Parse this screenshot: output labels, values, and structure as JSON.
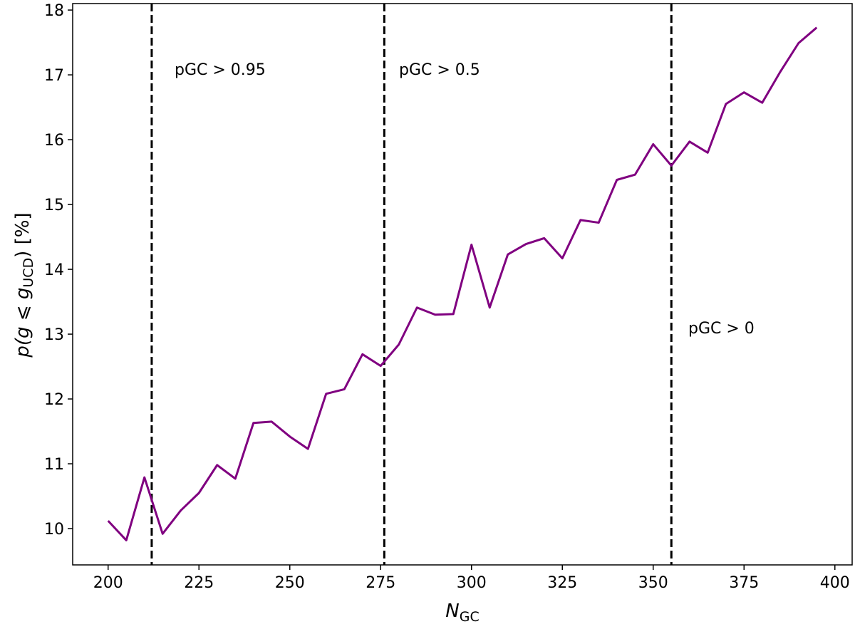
{
  "chart_data": {
    "type": "line",
    "xlabel": [
      "N",
      "GC"
    ],
    "ylabel": [
      "p(g ⩽ g",
      "UCD",
      ") [%]"
    ],
    "x": [
      200,
      205,
      210,
      215,
      220,
      225,
      230,
      235,
      240,
      245,
      250,
      255,
      260,
      265,
      270,
      275,
      280,
      285,
      290,
      295,
      300,
      305,
      310,
      315,
      320,
      325,
      330,
      335,
      340,
      345,
      350,
      355,
      360,
      365,
      370,
      375,
      380,
      385,
      390,
      395
    ],
    "series": [
      {
        "color": "#800080",
        "values": [
          10.12,
          9.82,
          10.79,
          9.92,
          10.28,
          10.55,
          10.98,
          10.77,
          11.63,
          11.65,
          11.42,
          11.23,
          12.08,
          12.15,
          12.69,
          12.51,
          12.84,
          13.41,
          13.3,
          13.31,
          14.38,
          13.41,
          14.23,
          14.39,
          14.48,
          14.17,
          14.76,
          14.72,
          15.38,
          15.46,
          15.93,
          15.6,
          15.97,
          15.8,
          16.55,
          16.73,
          16.57,
          17.05,
          17.49,
          17.73
        ]
      }
    ],
    "vlines": [
      212,
      276,
      355
    ],
    "annotations": [
      "pGC > 0.95",
      "pGC > 0.5",
      "pGC > 0"
    ],
    "xlim": [
      190.25,
      404.75
    ],
    "ylim": [
      9.44,
      18.1
    ],
    "xticks": [
      200,
      225,
      250,
      275,
      300,
      325,
      350,
      375,
      400
    ],
    "yticks": [
      10,
      11,
      12,
      13,
      14,
      15,
      16,
      17,
      18
    ],
    "grid": false
  }
}
